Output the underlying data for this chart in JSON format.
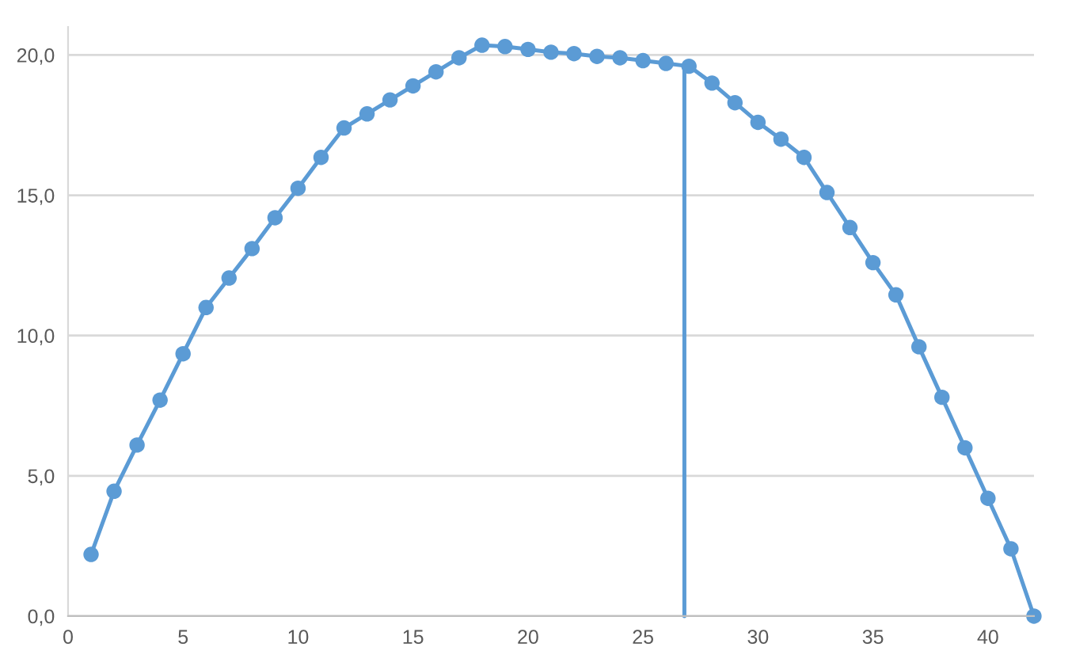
{
  "chart_data": {
    "type": "line",
    "xlim": [
      0,
      42
    ],
    "xticks": [
      0,
      5,
      10,
      15,
      20,
      25,
      30,
      35,
      40
    ],
    "ylim": [
      0,
      21
    ],
    "yticks": [
      {
        "value": 0,
        "label": "0,0"
      },
      {
        "value": 5,
        "label": "5,0"
      },
      {
        "value": 10,
        "label": "10,0"
      },
      {
        "value": 15,
        "label": "15,0"
      },
      {
        "value": 20,
        "label": "20,0"
      }
    ],
    "grid": "y",
    "marker": "circle",
    "line_style": "solid",
    "series": [
      {
        "color": "#5b9bd5",
        "x": [
          1,
          2,
          3,
          4,
          5,
          6,
          7,
          8,
          9,
          10,
          11,
          12,
          13,
          14,
          15,
          16,
          17,
          18,
          19,
          20,
          21,
          22,
          23,
          24,
          25,
          26,
          27,
          28,
          29,
          30,
          31,
          32,
          33,
          34,
          35,
          36,
          37,
          38,
          39,
          40,
          41,
          42
        ],
        "values": [
          2.2,
          4.45,
          6.1,
          7.7,
          9.35,
          11.0,
          12.05,
          13.1,
          14.2,
          15.25,
          16.35,
          17.4,
          17.9,
          18.4,
          18.9,
          19.4,
          19.9,
          20.35,
          20.3,
          20.2,
          20.1,
          20.05,
          19.95,
          19.9,
          19.8,
          19.7,
          19.6,
          19.0,
          18.3,
          17.6,
          17.0,
          16.35,
          15.1,
          13.85,
          12.6,
          11.45,
          9.6,
          7.8,
          6.0,
          4.2,
          2.4,
          0.0
        ]
      },
      {
        "type": "line",
        "marker": "none",
        "color": "#5b9bd5",
        "x": [
          26.8,
          26.8
        ],
        "values": [
          0,
          19.6
        ]
      }
    ]
  }
}
